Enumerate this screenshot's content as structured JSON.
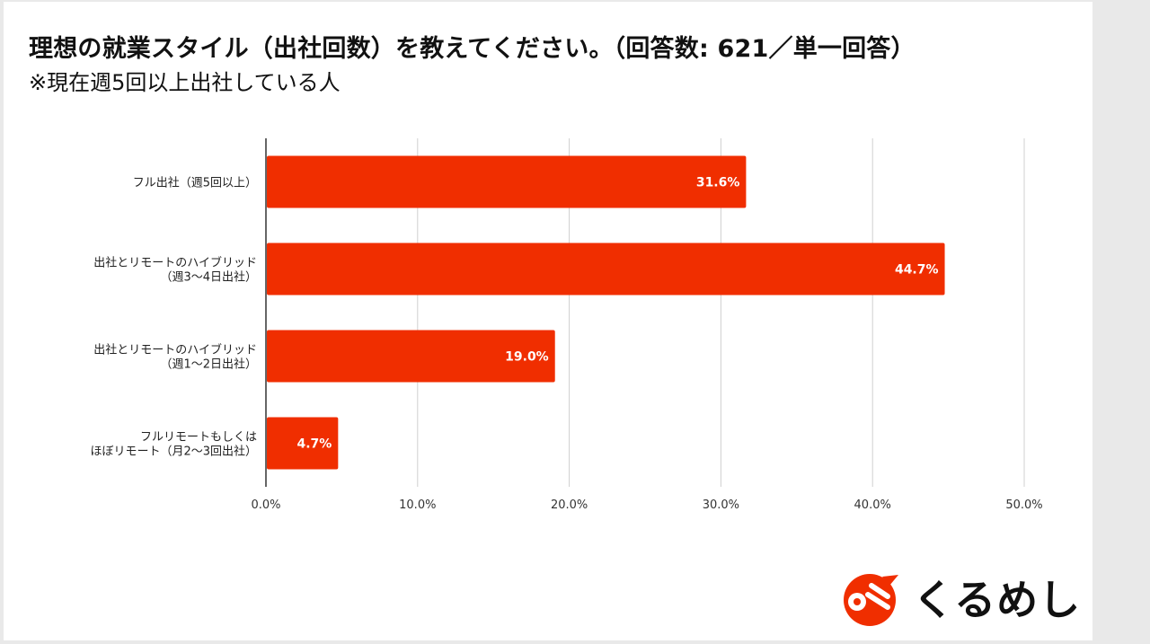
{
  "header": {
    "title": "理想の就業スタイル（出社回数）を教えてください。（回答数: 621／単一回答）",
    "subtitle": "※現在週5回以上出社している人"
  },
  "brand": {
    "logo_text": "くるめし",
    "logo_icon": "kurumeshi-logo-icon",
    "accent_color": "#f02e00"
  },
  "chart_data": {
    "type": "bar",
    "orientation": "horizontal",
    "categories": [
      [
        "フル出社（週5回以上）"
      ],
      [
        "出社とリモートのハイブリッド",
        "（週3〜4日出社）"
      ],
      [
        "出社とリモートのハイブリッド",
        "（週1〜2日出社）"
      ],
      [
        "フルリモートもしくは",
        "ほぼリモート（月2〜3回出社）"
      ]
    ],
    "values": [
      31.6,
      44.7,
      19.0,
      4.7
    ],
    "data_labels": [
      "31.6%",
      "44.7%",
      "19.0%",
      "4.7%"
    ],
    "xlim": [
      0,
      50
    ],
    "xticks": [
      0,
      10,
      20,
      30,
      40,
      50
    ],
    "xtick_labels": [
      "0.0%",
      "10.0%",
      "20.0%",
      "30.0%",
      "40.0%",
      "50.0%"
    ],
    "grid": "vertical",
    "bar_color": "#f02e00"
  }
}
